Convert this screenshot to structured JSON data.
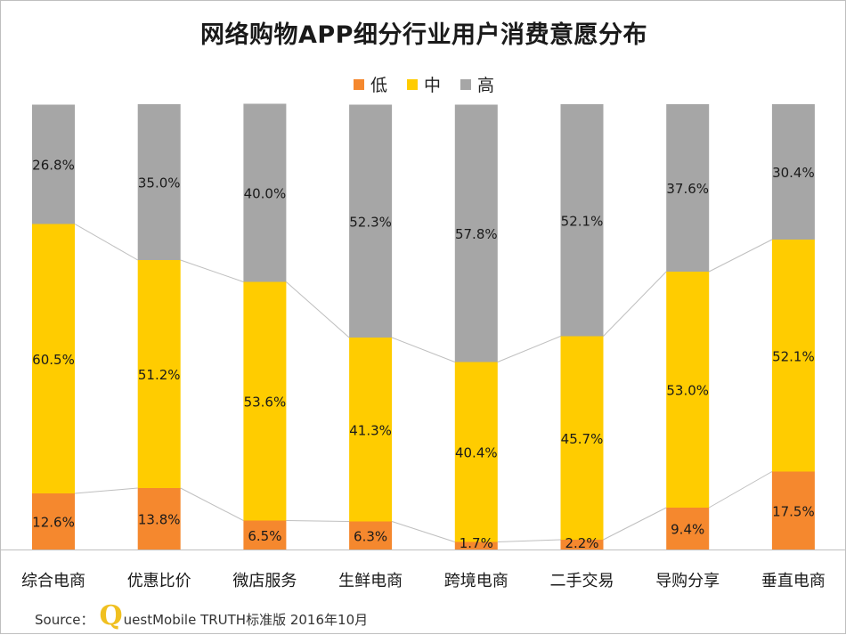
{
  "chart_data": {
    "type": "bar",
    "stacked": true,
    "normalized": true,
    "title": "网络购物APP细分行业用户消费意愿分布",
    "categories": [
      "综合电商",
      "优惠比价",
      "微店服务",
      "生鲜电商",
      "跨境电商",
      "二手交易",
      "导购分享",
      "垂直电商"
    ],
    "series": [
      {
        "name": "低",
        "color": "#f5882e",
        "values": [
          12.6,
          13.8,
          6.5,
          6.3,
          1.7,
          2.2,
          9.4,
          17.5
        ],
        "labels": [
          "12.6%",
          "13.8%",
          "6.5%",
          "6.3%",
          "1.7%",
          "2.2%",
          "9.4%",
          "17.5%"
        ]
      },
      {
        "name": "中",
        "color": "#ffcc00",
        "values": [
          60.5,
          51.2,
          53.6,
          41.3,
          40.4,
          45.7,
          53.0,
          52.1
        ],
        "labels": [
          "60.5%",
          "51.2%",
          "53.6%",
          "41.3%",
          "40.4%",
          "45.7%",
          "53.0%",
          "52.1%"
        ]
      },
      {
        "name": "高",
        "color": "#a6a6a6",
        "values": [
          26.8,
          35.0,
          40.0,
          52.3,
          57.8,
          52.1,
          37.6,
          30.4
        ],
        "labels": [
          "26.8%",
          "35.0%",
          "40.0%",
          "52.3%",
          "57.8%",
          "52.1%",
          "37.6%",
          "30.4%"
        ]
      }
    ],
    "ylim": [
      0,
      100
    ],
    "grid": false,
    "legend": "top-center",
    "series_lines": true
  },
  "source": {
    "label": "Source：",
    "q_letter": "Q",
    "rest": "uestMobile TRUTH标准版 2016年10月"
  }
}
